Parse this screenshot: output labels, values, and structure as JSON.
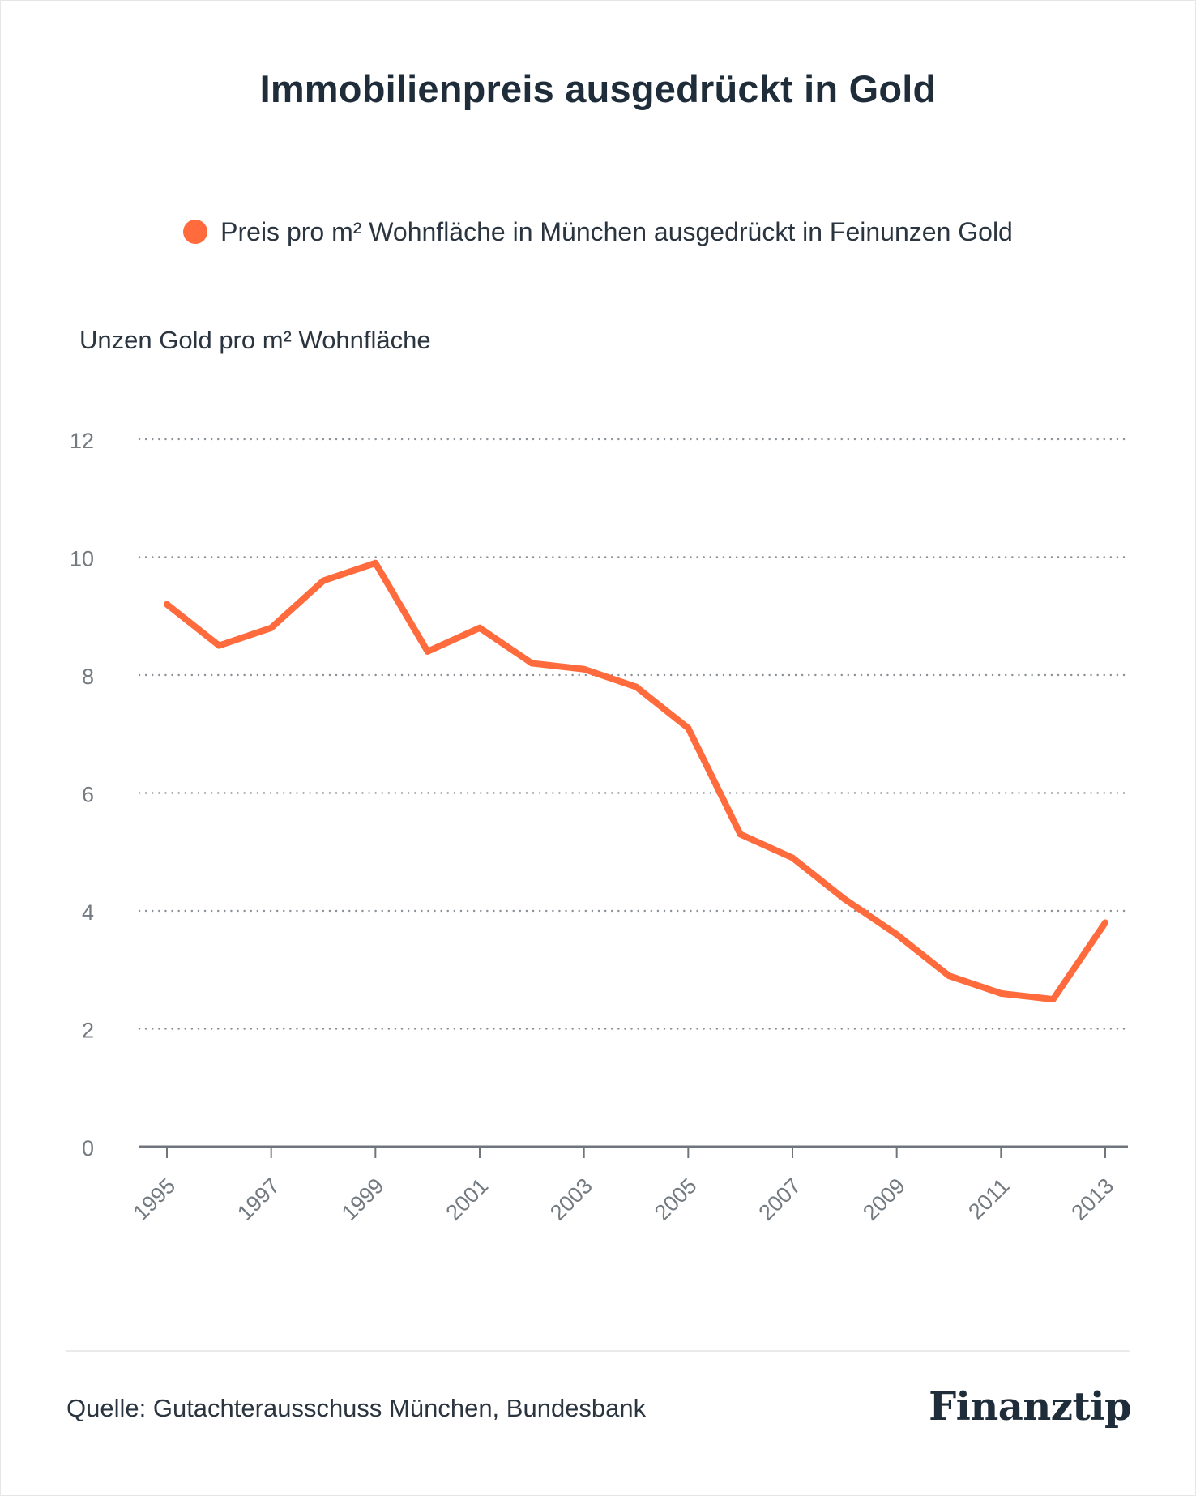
{
  "title": "Immobilienpreis ausgedrückt in Gold",
  "legend_label": "Preis pro m² Wohnfläche in München ausgedrückt in Feinunzen Gold",
  "y_axis_label": "Unzen Gold pro m² Wohnfläche",
  "source": "Quelle: Gutachterausschuss München, Bundesbank",
  "logo_text": "Finanztip",
  "colors": {
    "line": "#ff6b3d",
    "grid": "#8a9096",
    "axis": "#6f757b",
    "tick_text": "#737a80",
    "title": "#1f2d3a"
  },
  "chart_data": {
    "type": "line",
    "title": "Immobilienpreis ausgedrückt in Gold",
    "xlabel": "",
    "ylabel": "Unzen Gold pro m² Wohnfläche",
    "ylim": [
      0,
      12
    ],
    "yticks": [
      0,
      2,
      4,
      6,
      8,
      10,
      12
    ],
    "xlim": [
      1995,
      2013
    ],
    "xticks": [
      "1995",
      "1997",
      "1999",
      "2001",
      "2003",
      "2005",
      "2007",
      "2009",
      "2011",
      "2013"
    ],
    "grid": "horizontal-dotted",
    "legend_position": "top-center",
    "series": [
      {
        "name": "Preis pro m² Wohnfläche in München ausgedrückt in Feinunzen Gold",
        "x": [
          1995,
          1996,
          1997,
          1998,
          1999,
          2000,
          2001,
          2002,
          2003,
          2004,
          2005,
          2006,
          2007,
          2008,
          2009,
          2010,
          2011,
          2012,
          2013
        ],
        "values": [
          9.2,
          8.5,
          8.8,
          9.6,
          9.9,
          8.4,
          8.8,
          8.2,
          8.1,
          7.8,
          7.1,
          5.3,
          4.9,
          4.2,
          3.6,
          2.9,
          2.6,
          2.5,
          3.8
        ]
      }
    ]
  }
}
